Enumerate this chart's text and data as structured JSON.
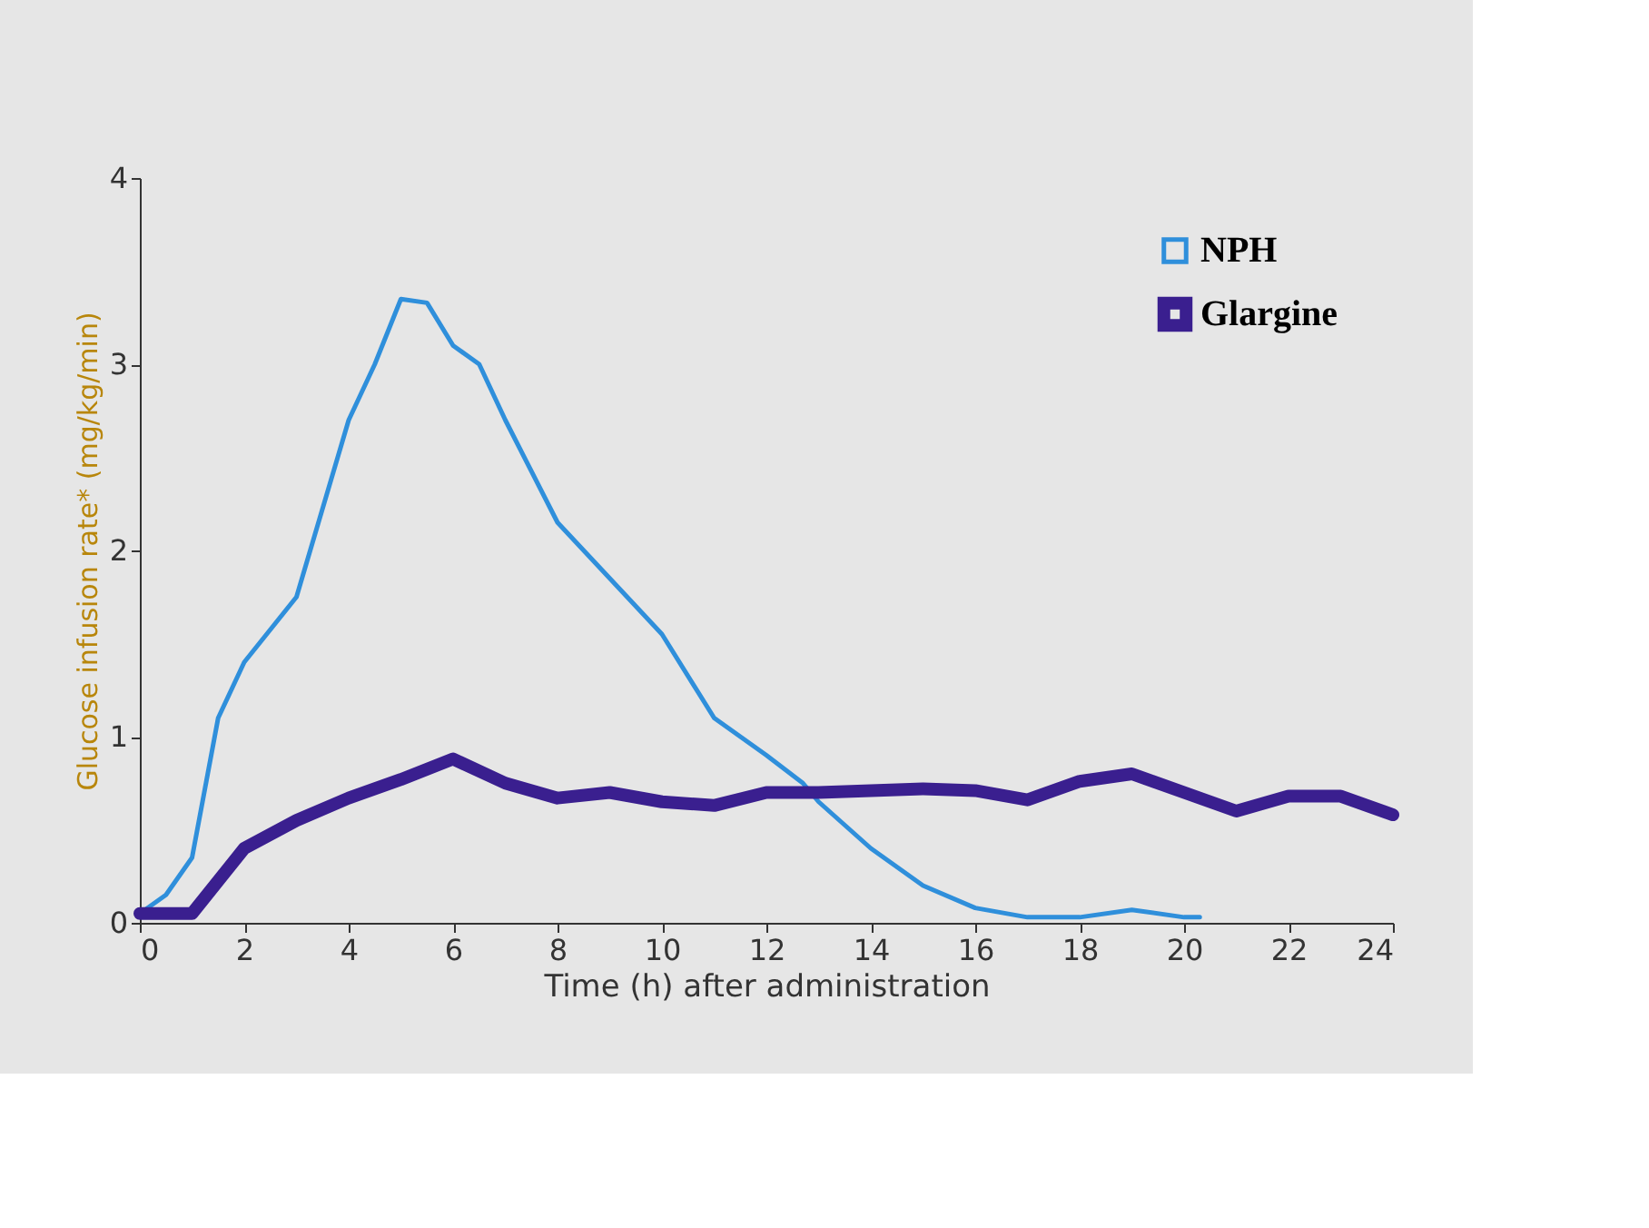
{
  "chart_data": {
    "type": "line",
    "xlabel": "Time (h) after administration",
    "ylabel": "Glucose infusion rate* (mg/kg/min)",
    "xlim": [
      0,
      24
    ],
    "xticks": [
      0,
      2,
      4,
      6,
      8,
      10,
      12,
      14,
      16,
      18,
      20,
      22,
      24
    ],
    "ylim": [
      0,
      4
    ],
    "yticks": [
      0,
      1,
      2,
      3,
      4
    ],
    "grid": false,
    "legend": "top right",
    "series": [
      {
        "name": "NPH",
        "color": "#2f8fdb",
        "x": [
          0,
          0.5,
          1,
          1.3,
          1.5,
          2,
          3,
          4,
          4.5,
          5,
          5.5,
          6,
          6.5,
          7,
          8,
          9,
          10,
          11,
          12,
          12.7,
          13,
          14,
          15,
          16,
          17,
          18,
          19,
          20,
          20.3
        ],
        "values": [
          0.05,
          0.15,
          0.35,
          0.8,
          1.1,
          1.4,
          1.75,
          2.7,
          3.0,
          3.35,
          3.33,
          3.1,
          3.0,
          2.7,
          2.15,
          1.85,
          1.55,
          1.1,
          0.9,
          0.75,
          0.65,
          0.4,
          0.2,
          0.08,
          0.03,
          0.03,
          0.07,
          0.03,
          0.03
        ]
      },
      {
        "name": "Glargine",
        "color": "#3a1f8f",
        "x": [
          0,
          1,
          2,
          3,
          4,
          5,
          6,
          7,
          8,
          9,
          10,
          11,
          12,
          13,
          14,
          15,
          16,
          17,
          18,
          19,
          20,
          21,
          22,
          23,
          24
        ],
        "values": [
          0.05,
          0.05,
          0.4,
          0.55,
          0.67,
          0.77,
          0.88,
          0.75,
          0.67,
          0.7,
          0.65,
          0.63,
          0.7,
          0.7,
          0.71,
          0.72,
          0.71,
          0.66,
          0.76,
          0.8,
          0.7,
          0.6,
          0.68,
          0.68,
          0.58
        ]
      }
    ]
  }
}
